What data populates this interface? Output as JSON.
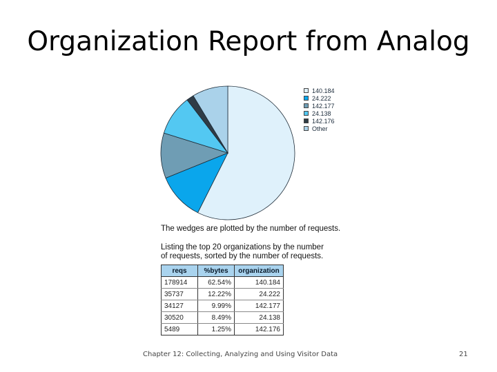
{
  "slide": {
    "title": "Organization Report from Analog",
    "footer": "Chapter 12: Collecting, Analyzing and Using Visitor Data",
    "page_number": "21"
  },
  "figure": {
    "caption": "The wedges are plotted by the number of requests.",
    "table_caption": "Listing the top 20 organizations by the number of requests, sorted by the number of requests."
  },
  "colors": {
    "140.184": "#dff1fb",
    "24.222": "#0aa6ec",
    "142.177": "#6f9db4",
    "24.138": "#53c8f2",
    "142.176": "#2f3c46",
    "Other": "#aad2ea"
  },
  "chart_data": {
    "type": "pie",
    "labels": [
      "140.184",
      "24.222",
      "142.177",
      "24.138",
      "142.176",
      "Other"
    ],
    "values": [
      178914,
      35737,
      34127,
      30520,
      5489,
      26913
    ],
    "legend_position": "right"
  },
  "table": {
    "headers": [
      "reqs",
      "%bytes",
      "organization"
    ],
    "rows": [
      [
        "178914",
        "62.54%",
        "140.184"
      ],
      [
        "35737",
        "12.22%",
        "24.222"
      ],
      [
        "34127",
        "9.99%",
        "142.177"
      ],
      [
        "30520",
        "8.49%",
        "24.138"
      ],
      [
        "5489",
        "1.25%",
        "142.176"
      ]
    ]
  }
}
